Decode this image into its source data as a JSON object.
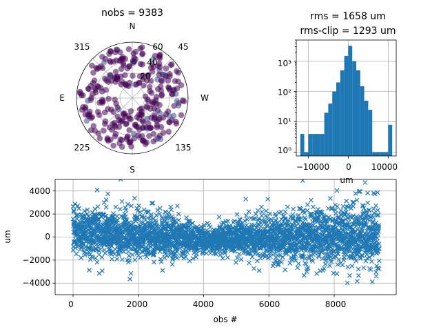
{
  "chart_data": [
    {
      "type": "scatter",
      "subtype": "polar",
      "title": "nobs = 9383",
      "direction_labels": {
        "N": "N",
        "E": "E",
        "S": "S",
        "W": "W"
      },
      "azimuth_tick_labels": [
        "45",
        "135",
        "225",
        "315"
      ],
      "radial_tick_labels": [
        "20",
        "40",
        "60"
      ],
      "r_max": 90,
      "marker_color_low": "#440154",
      "marker_color_high": "#3b528b",
      "grid": true
    },
    {
      "type": "bar",
      "subtype": "histogram",
      "title_line1": "rms = 1658 um",
      "title_line2": "rms-clip = 1293 um",
      "xlabel": "um",
      "ylabel": "",
      "yscale": "log",
      "xlim": [
        -13000,
        12000
      ],
      "ylim": [
        0.75,
        5000
      ],
      "x_tick_labels": [
        "−10000",
        "0",
        "10000"
      ],
      "y_tick_labels": [
        "10⁰",
        "10¹",
        "10²",
        "10³"
      ],
      "bin_width": 1000,
      "bins": [
        {
          "x0": -12000,
          "count": 4
        },
        {
          "x0": -11000,
          "count": 1
        },
        {
          "x0": -10000,
          "count": 4
        },
        {
          "x0": -9000,
          "count": 4
        },
        {
          "x0": -8000,
          "count": 4
        },
        {
          "x0": -7000,
          "count": 4
        },
        {
          "x0": -6000,
          "count": 20
        },
        {
          "x0": -5000,
          "count": 40
        },
        {
          "x0": -4000,
          "count": 100
        },
        {
          "x0": -3000,
          "count": 200
        },
        {
          "x0": -2000,
          "count": 500
        },
        {
          "x0": -1000,
          "count": 1500
        },
        {
          "x0": 0,
          "count": 3200
        },
        {
          "x0": 1000,
          "count": 1000
        },
        {
          "x0": 2000,
          "count": 500
        },
        {
          "x0": 3000,
          "count": 150
        },
        {
          "x0": 4000,
          "count": 50
        },
        {
          "x0": 5000,
          "count": 25
        },
        {
          "x0": 6000,
          "count": 1
        },
        {
          "x0": 7000,
          "count": 1
        },
        {
          "x0": 8000,
          "count": 1
        },
        {
          "x0": 9000,
          "count": 1
        },
        {
          "x0": 10000,
          "count": 8
        }
      ],
      "bar_color": "#1f77b4",
      "grid": true
    },
    {
      "type": "scatter",
      "marker": "x",
      "xlabel": "obs #",
      "ylabel": "um",
      "xlim": [
        -550,
        9900
      ],
      "ylim": [
        -5000,
        5000
      ],
      "x_tick_labels": [
        "0",
        "2000",
        "4000",
        "6000",
        "8000"
      ],
      "y_tick_labels": [
        "−4000",
        "−2000",
        "0",
        "2000",
        "4000"
      ],
      "n_points": 9383,
      "noise_profile": [
        {
          "x": 0,
          "sd": 1200,
          "mean": 500
        },
        {
          "x": 1500,
          "sd": 1500,
          "mean": 300
        },
        {
          "x": 3000,
          "sd": 1200,
          "mean": 0
        },
        {
          "x": 4200,
          "sd": 700,
          "mean": -300
        },
        {
          "x": 5500,
          "sd": 1100,
          "mean": 0
        },
        {
          "x": 6500,
          "sd": 1400,
          "mean": 0
        },
        {
          "x": 7500,
          "sd": 1600,
          "mean": 0
        },
        {
          "x": 8500,
          "sd": 2000,
          "mean": 300
        },
        {
          "x": 9383,
          "sd": 1800,
          "mean": 0
        }
      ],
      "marker_color": "#1f77b4",
      "grid": true
    }
  ]
}
